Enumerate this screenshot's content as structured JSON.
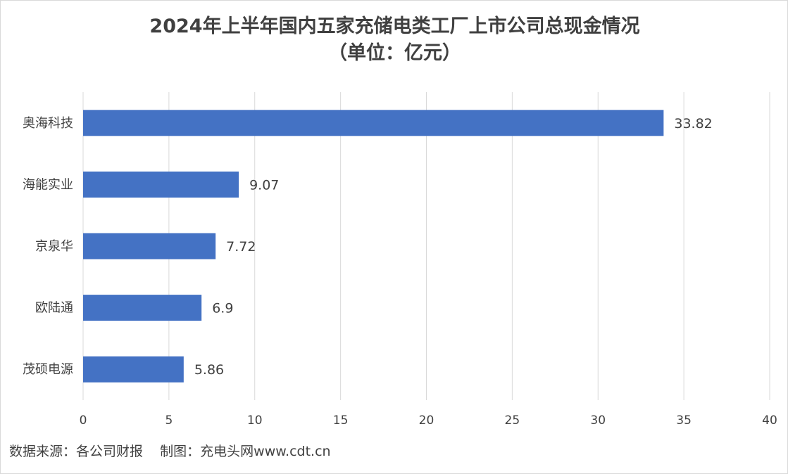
{
  "chart_data": {
    "type": "bar",
    "orientation": "horizontal",
    "title": "2024年上半年国内五家充储电类工厂上市公司总现金情况",
    "subtitle": "（单位：亿元）",
    "categories": [
      "奥海科技",
      "海能实业",
      "京泉华",
      "欧陆通",
      "茂硕电源"
    ],
    "values": [
      33.82,
      9.07,
      7.72,
      6.9,
      5.86
    ],
    "value_labels": [
      "33.82",
      "9.07",
      "7.72",
      "6.9",
      "5.86"
    ],
    "xlim": [
      0,
      40
    ],
    "x_ticks": [
      "0",
      "5",
      "10",
      "15",
      "20",
      "25",
      "30",
      "35",
      "40"
    ],
    "grid": "vertical",
    "legend": "none",
    "bar_color": "#4472c4",
    "grid_color": "#d9d9d9",
    "text_color": "#404040"
  },
  "footer": {
    "source": "数据来源：各公司财报    制图：充电头网www.cdt.cn"
  }
}
